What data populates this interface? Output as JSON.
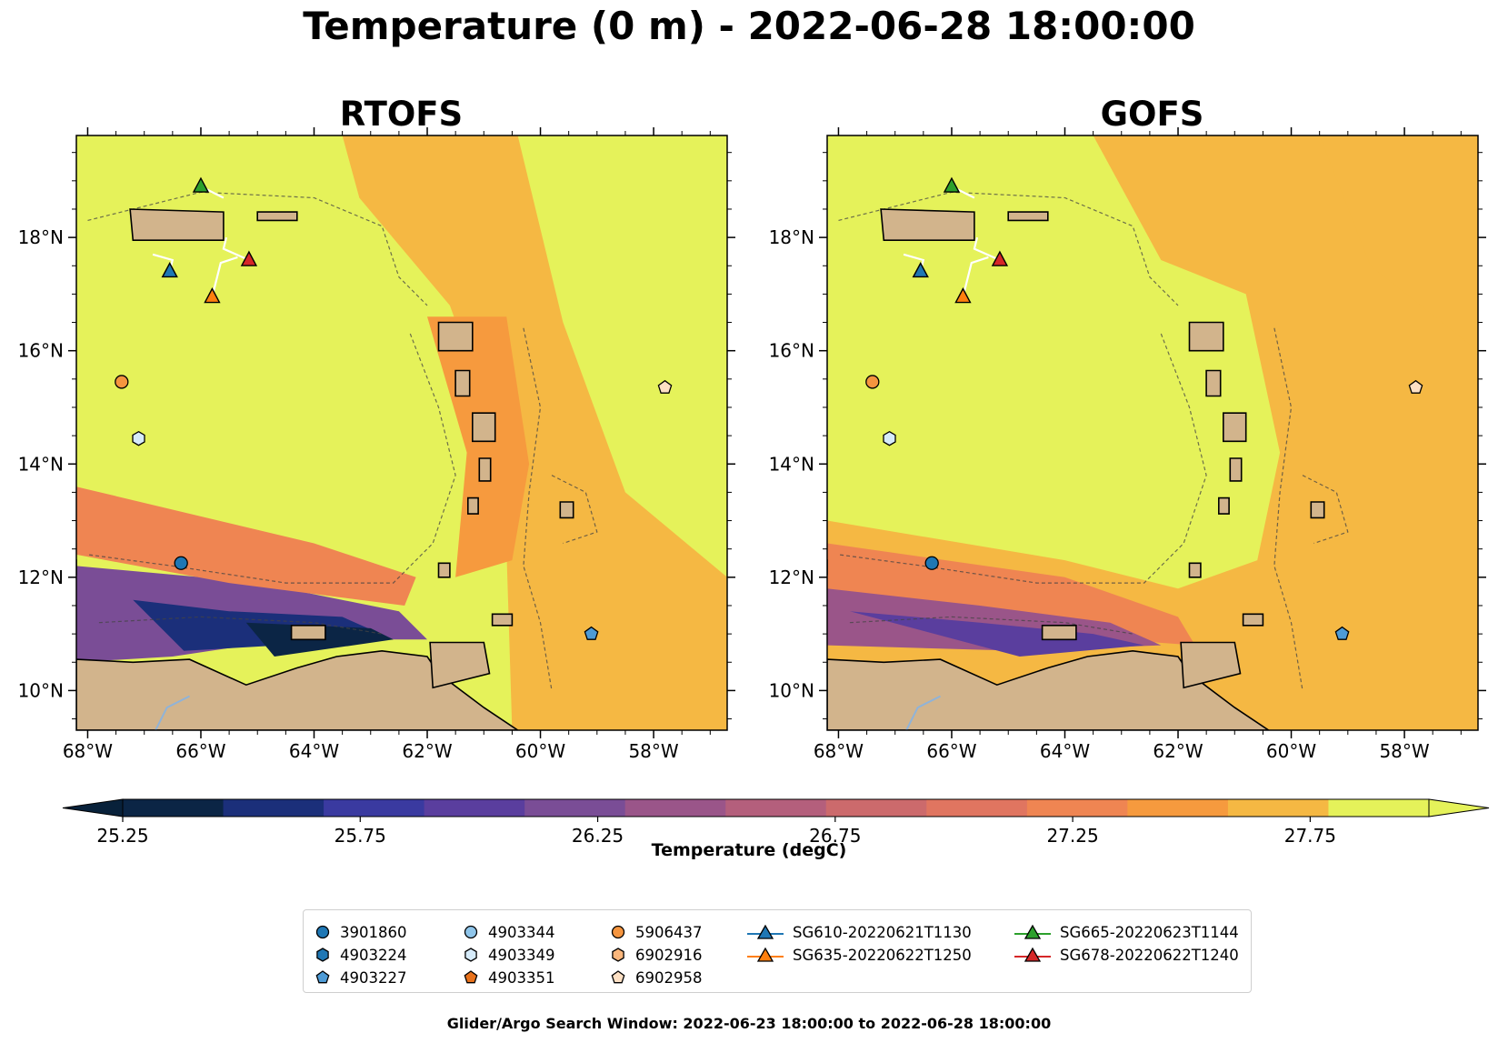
{
  "title": "Temperature (0 m) - 2022-06-28 18:00:00",
  "footer": "Glider/Argo Search Window: 2022-06-23 18:00:00 to 2022-06-28 18:00:00",
  "colorbar": {
    "label": "Temperature (degC)",
    "tick_labels": [
      "25.25",
      "25.75",
      "26.25",
      "26.75",
      "27.25",
      "27.75"
    ],
    "ticks": [
      25.25,
      25.75,
      26.25,
      26.75,
      27.25,
      27.75
    ],
    "levels": [
      25.25,
      25.375,
      25.5,
      25.625,
      25.75,
      25.875,
      26.0,
      26.125,
      26.25,
      26.375,
      26.5,
      26.625,
      26.75,
      26.875,
      27.0,
      27.125,
      27.25,
      27.375,
      27.5,
      27.625,
      27.75,
      27.875,
      28.0
    ],
    "colors": [
      "#0b2545",
      "#1b2f7a",
      "#3a3aa0",
      "#5a3e9e",
      "#7a4d96",
      "#9a5589",
      "#b45f7c",
      "#cc6a6c",
      "#e07560",
      "#ef8552",
      "#f69a3e",
      "#f5b843",
      "#e5f25a"
    ],
    "over_color": "#e5f25a",
    "under_color": "#08213a"
  },
  "axes": {
    "lon_ticks": [
      -68,
      -66,
      -64,
      -62,
      -60,
      -58
    ],
    "lon_tick_labels": [
      "68°W",
      "66°W",
      "64°W",
      "62°W",
      "60°W",
      "58°W"
    ],
    "lat_ticks": [
      10,
      12,
      14,
      16,
      18
    ],
    "lat_tick_labels": [
      "10°N",
      "12°N",
      "14°N",
      "16°N",
      "18°N"
    ],
    "lon_range": [
      -68.2,
      -56.7
    ],
    "lat_range": [
      9.3,
      19.8
    ]
  },
  "colors": {
    "land": "#d2b48c",
    "coast": "#000000",
    "river": "#8fb3d9",
    "bathy": "#444444"
  },
  "chart_data": [
    {
      "type": "heatmap",
      "title": "RTOFS",
      "variable": "Temperature (degC)",
      "depth": "0 m",
      "xlabel": "",
      "ylabel": "",
      "background_temp": 27.9,
      "temperature_regions": [
        {
          "lon_lat": [
            [
              -68.2,
              19.8
            ],
            [
              -64.0,
              19.8
            ],
            [
              -62.5,
              18.3
            ],
            [
              -61.5,
              16.6
            ],
            [
              -60.8,
              14.4
            ],
            [
              -61.2,
              12.6
            ],
            [
              -62.6,
              11.0
            ],
            [
              -65.0,
              11.6
            ],
            [
              -68.2,
              12.5
            ]
          ],
          "temp": 28.1
        },
        {
          "lon_lat": [
            [
              -63.5,
              19.8
            ],
            [
              -56.7,
              19.8
            ],
            [
              -56.7,
              9.3
            ],
            [
              -60.5,
              9.3
            ],
            [
              -60.6,
              12.5
            ],
            [
              -60.8,
              14.6
            ],
            [
              -61.6,
              16.8
            ],
            [
              -63.2,
              18.7
            ]
          ],
          "temp": 27.6
        },
        {
          "lon_lat": [
            [
              -60.4,
              19.8
            ],
            [
              -56.7,
              19.8
            ],
            [
              -56.7,
              12.0
            ],
            [
              -58.5,
              13.5
            ],
            [
              -59.6,
              16.5
            ]
          ],
          "temp": 27.8
        },
        {
          "lon_lat": [
            [
              -62.0,
              16.6
            ],
            [
              -60.6,
              16.6
            ],
            [
              -60.2,
              14.0
            ],
            [
              -60.5,
              12.3
            ],
            [
              -61.5,
              12.0
            ],
            [
              -61.3,
              14.2
            ]
          ],
          "temp": 27.4
        },
        {
          "lon_lat": [
            [
              -68.2,
              12.2
            ],
            [
              -66.0,
              12.0
            ],
            [
              -64.5,
              11.8
            ],
            [
              -62.5,
              11.4
            ],
            [
              -62.0,
              10.9
            ],
            [
              -64.5,
              10.9
            ],
            [
              -66.5,
              10.6
            ],
            [
              -68.2,
              10.5
            ]
          ],
          "temp": 26.3
        },
        {
          "lon_lat": [
            [
              -67.2,
              11.6
            ],
            [
              -65.5,
              11.4
            ],
            [
              -63.5,
              11.3
            ],
            [
              -62.6,
              10.9
            ],
            [
              -64.6,
              10.8
            ],
            [
              -66.3,
              10.7
            ]
          ],
          "temp": 25.6
        },
        {
          "lon_lat": [
            [
              -65.2,
              11.2
            ],
            [
              -63.0,
              11.1
            ],
            [
              -62.6,
              10.9
            ],
            [
              -64.7,
              10.6
            ]
          ],
          "temp": 25.3
        },
        {
          "lon_lat": [
            [
              -68.2,
              13.6
            ],
            [
              -64.0,
              12.6
            ],
            [
              -62.2,
              12.0
            ],
            [
              -62.4,
              11.5
            ],
            [
              -65.5,
              11.9
            ],
            [
              -68.2,
              12.4
            ]
          ],
          "temp": 27.3
        }
      ],
      "bathymetry_contours_m": [
        -1000,
        -100
      ]
    },
    {
      "type": "heatmap",
      "title": "GOFS",
      "variable": "Temperature (degC)",
      "depth": "0 m",
      "xlabel": "",
      "ylabel": "",
      "background_temp": 27.6,
      "temperature_regions": [
        {
          "lon_lat": [
            [
              -68.2,
              19.8
            ],
            [
              -63.5,
              19.8
            ],
            [
              -62.3,
              17.6
            ],
            [
              -60.8,
              17.0
            ],
            [
              -60.2,
              14.2
            ],
            [
              -60.6,
              12.3
            ],
            [
              -62.0,
              11.8
            ],
            [
              -64.0,
              12.3
            ],
            [
              -68.2,
              13.0
            ]
          ],
          "temp": 28.1
        },
        {
          "lon_lat": [
            [
              -59.5,
              19.8
            ],
            [
              -56.7,
              19.8
            ],
            [
              -56.7,
              16.0
            ],
            [
              -58.6,
              17.5
            ]
          ],
          "temp": 27.7
        },
        {
          "lon_lat": [
            [
              -68.2,
              12.6
            ],
            [
              -64.0,
              12.0
            ],
            [
              -62.0,
              11.3
            ],
            [
              -61.7,
              10.8
            ],
            [
              -64.5,
              11.0
            ],
            [
              -68.2,
              11.3
            ]
          ],
          "temp": 27.3
        },
        {
          "lon_lat": [
            [
              -68.2,
              11.8
            ],
            [
              -65.5,
              11.5
            ],
            [
              -63.2,
              11.2
            ],
            [
              -62.3,
              10.8
            ],
            [
              -64.8,
              10.7
            ],
            [
              -68.2,
              10.8
            ]
          ],
          "temp": 26.5
        },
        {
          "lon_lat": [
            [
              -67.8,
              11.4
            ],
            [
              -65.5,
              11.2
            ],
            [
              -63.5,
              11.0
            ],
            [
              -62.6,
              10.8
            ],
            [
              -64.8,
              10.6
            ]
          ],
          "temp": 26.0
        }
      ],
      "bathymetry_contours_m": [
        -1000,
        -100
      ]
    }
  ],
  "argo_floats": [
    {
      "name": "3901860",
      "marker": "circle",
      "color": "#1f77b4",
      "lon": -66.35,
      "lat": 12.25
    },
    {
      "name": "4903224",
      "marker": "hexagon",
      "color": "#1f77b4",
      "lon": null,
      "lat": null
    },
    {
      "name": "4903227",
      "marker": "pentagon",
      "color": "#4e9bd6",
      "lon": -59.1,
      "lat": 11.0
    },
    {
      "name": "4903344",
      "marker": "circle",
      "color": "#8fc5ea",
      "lon": null,
      "lat": null
    },
    {
      "name": "4903349",
      "marker": "hexagon",
      "color": "#d6ebfa",
      "lon": -67.1,
      "lat": 14.45
    },
    {
      "name": "4903351",
      "marker": "pentagon",
      "color": "#e8721c",
      "lon": null,
      "lat": null
    },
    {
      "name": "5906437",
      "marker": "circle",
      "color": "#f5953f",
      "lon": -67.4,
      "lat": 15.45
    },
    {
      "name": "6902916",
      "marker": "hexagon",
      "color": "#fbb77c",
      "lon": null,
      "lat": null
    },
    {
      "name": "6902958",
      "marker": "pentagon",
      "color": "#fde0c4",
      "lon": -57.8,
      "lat": 15.35
    }
  ],
  "gliders": [
    {
      "name": "SG610-20220621T1130",
      "color": "#1f77b4",
      "lon": -66.55,
      "lat": 17.4,
      "track": [
        [
          -66.55,
          17.4
        ],
        [
          -66.5,
          17.6
        ],
        [
          -66.85,
          17.7
        ]
      ]
    },
    {
      "name": "SG635-20220622T1250",
      "color": "#ff7f0e",
      "lon": -65.8,
      "lat": 16.95,
      "track": [
        [
          -65.8,
          16.95
        ],
        [
          -65.65,
          17.55
        ],
        [
          -65.35,
          17.65
        ]
      ]
    },
    {
      "name": "SG665-20220623T1144",
      "color": "#2ca02c",
      "lon": -66.0,
      "lat": 18.9,
      "track": [
        [
          -66.0,
          18.9
        ],
        [
          -65.6,
          18.7
        ]
      ]
    },
    {
      "name": "SG678-20220622T1240",
      "color": "#d62728",
      "lon": -65.15,
      "lat": 17.6,
      "track": [
        [
          -65.15,
          17.6
        ],
        [
          -65.6,
          17.8
        ],
        [
          -65.55,
          18.0
        ]
      ]
    }
  ]
}
